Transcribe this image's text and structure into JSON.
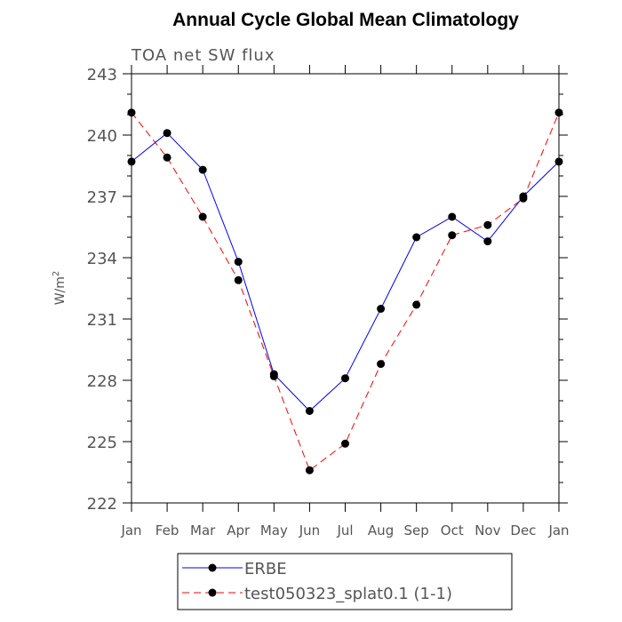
{
  "chart_data": {
    "type": "line",
    "title": "Annual Cycle Global Mean Climatology",
    "subtitle": "TOA net SW flux",
    "ylabel": "W/m",
    "ylabel_sup": "2",
    "xlabel": "",
    "ylim": [
      222,
      243
    ],
    "yticks": [
      222,
      225,
      228,
      231,
      234,
      237,
      240,
      243
    ],
    "categories": [
      "Jan",
      "Feb",
      "Mar",
      "Apr",
      "May",
      "Jun",
      "Jul",
      "Aug",
      "Sep",
      "Oct",
      "Nov",
      "Dec",
      "Jan"
    ],
    "series": [
      {
        "name": "ERBE",
        "color": "#0000ff",
        "dash": "solid",
        "values": [
          238.7,
          240.1,
          238.3,
          233.8,
          228.3,
          226.5,
          228.1,
          231.5,
          235.0,
          236.0,
          234.8,
          237.0,
          238.7
        ]
      },
      {
        "name": "test050323_splat0.1 (1-1)",
        "color": "#ff0000",
        "dash": "dashed",
        "values": [
          241.1,
          238.9,
          236.0,
          232.9,
          228.2,
          223.6,
          224.9,
          228.8,
          231.7,
          235.1,
          235.6,
          236.9,
          241.1
        ]
      }
    ],
    "grid": false,
    "legend_position": "bottom-center"
  }
}
